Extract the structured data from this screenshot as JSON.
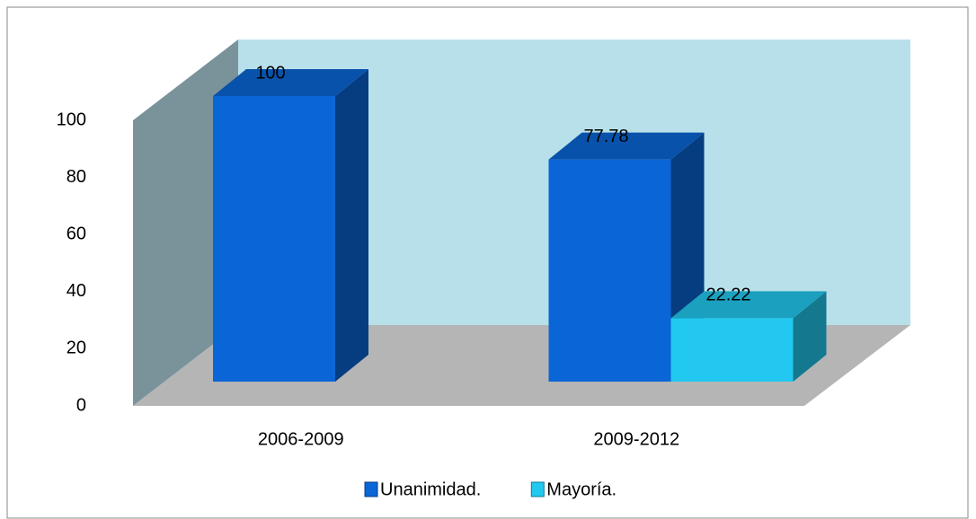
{
  "chart_data": {
    "type": "bar3d",
    "categories": [
      "2006-2009",
      "2009-2012"
    ],
    "series": [
      {
        "name": "Unanimidad.",
        "color": "#0a66d6",
        "values": [
          100,
          77.78
        ]
      },
      {
        "name": "Mayoría.",
        "color": "#22c8ef",
        "values": [
          null,
          22.22
        ]
      }
    ],
    "ylim": [
      0,
      100
    ],
    "yticks": [
      0,
      20,
      40,
      60,
      80,
      100
    ],
    "legend": "bottom"
  }
}
